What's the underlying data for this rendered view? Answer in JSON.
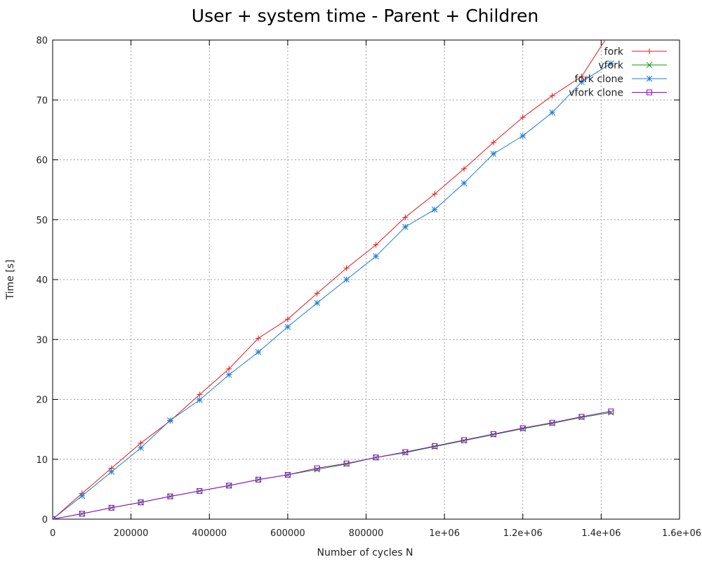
{
  "chart_data": {
    "type": "line",
    "title": "User + system time - Parent + Children",
    "xlabel": "Number of cycles N",
    "ylabel": "Time [s]",
    "xlim": [
      0,
      1600000
    ],
    "ylim": [
      0,
      80
    ],
    "xticks": [
      0,
      200000,
      400000,
      600000,
      800000,
      1000000,
      1200000,
      1400000,
      1600000
    ],
    "xtick_labels": [
      "0",
      "200000",
      "400000",
      "600000",
      "800000",
      "1e+06",
      "1.2e+06",
      "1.4e+06",
      "1.6e+06"
    ],
    "yticks": [
      0,
      10,
      20,
      30,
      40,
      50,
      60,
      70,
      80
    ],
    "ytick_labels": [
      "0",
      "10",
      "20",
      "30",
      "40",
      "50",
      "60",
      "70",
      "80"
    ],
    "grid": true,
    "legend_position": "top-right",
    "x": [
      0,
      75000,
      150000,
      225000,
      300000,
      375000,
      450000,
      525000,
      600000,
      675000,
      750000,
      825000,
      900000,
      975000,
      1050000,
      1125000,
      1200000,
      1275000,
      1350000,
      1425000
    ],
    "series": [
      {
        "name": "fork",
        "color": "#e41a1c",
        "marker": "plus",
        "values": [
          0,
          4.3,
          8.5,
          12.7,
          16.4,
          20.8,
          25.1,
          30.2,
          33.4,
          37.7,
          41.9,
          45.8,
          50.4,
          54.3,
          58.5,
          62.9,
          67.1,
          70.7,
          73.9,
          81.5
        ]
      },
      {
        "name": "vfork",
        "color": "#1a9e1a",
        "marker": "cross",
        "values": [
          0,
          0.9,
          1.9,
          2.8,
          3.8,
          4.7,
          5.6,
          6.6,
          7.4,
          8.3,
          9.2,
          10.3,
          11.1,
          12.1,
          13.1,
          14.1,
          15.1,
          16.0,
          17.0,
          17.8
        ]
      },
      {
        "name": "fork clone",
        "color": "#1c7cd6",
        "marker": "star",
        "values": [
          0,
          3.9,
          7.9,
          11.9,
          16.5,
          19.9,
          24.1,
          27.9,
          32.1,
          36.1,
          40.0,
          43.9,
          48.8,
          51.7,
          56.1,
          61.0,
          64.0,
          67.9,
          73.0,
          76.1
        ]
      },
      {
        "name": "vfork clone",
        "color": "#9400d3",
        "marker": "square",
        "values": [
          0,
          0.9,
          1.9,
          2.8,
          3.8,
          4.7,
          5.6,
          6.6,
          7.4,
          8.5,
          9.3,
          10.3,
          11.2,
          12.2,
          13.2,
          14.2,
          15.2,
          16.1,
          17.1,
          18.0
        ]
      }
    ]
  }
}
